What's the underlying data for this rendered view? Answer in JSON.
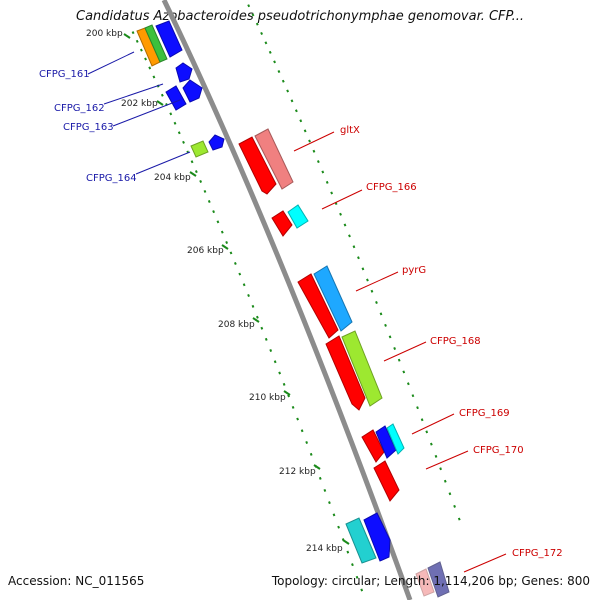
{
  "title": "Candidatus Azobacteroides pseudotrichonymphae genomovar. CFP...",
  "footer": {
    "accession": "Accession: NC_011565",
    "topology": "Topology: circular",
    "length": "Length: 1,114,206 bp",
    "genes": "Genes: 800"
  },
  "ticks": [
    "200 kbp",
    "202 kbp",
    "204 kbp",
    "206 kbp",
    "208 kbp",
    "210 kbp",
    "212 kbp",
    "214 kbp"
  ],
  "left_gene_labels": [
    "CFPG_161",
    "CFPG_162",
    "CFPG_163",
    "CFPG_164"
  ],
  "right_gene_labels": [
    "gltX",
    "CFPG_166",
    "pyrG",
    "CFPG_168",
    "CFPG_169",
    "CFPG_170",
    "CFPG_172"
  ],
  "colors": {
    "backbone": "#8c8c8c",
    "tick_green": "#1a8a1a",
    "left_label": "#1a1aa8",
    "right_label": "#cc0000",
    "orange": "#ff9a00",
    "green": "#3cc03c",
    "blue": "#0d0dff",
    "lime": "#9de830",
    "red": "#ff0000",
    "salmon": "#f08080",
    "cyan": "#00ffff",
    "skyblue": "#1ea8ff",
    "teal": "#22d0d0",
    "navy": "#40409a"
  }
}
